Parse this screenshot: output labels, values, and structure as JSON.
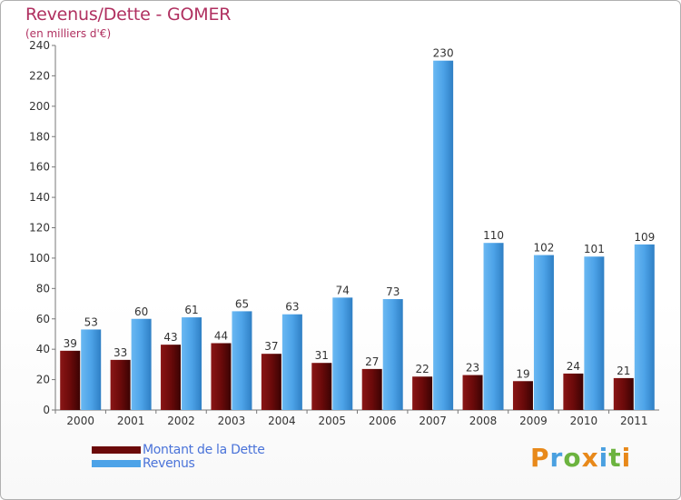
{
  "title": "Revenus/Dette - GOMER",
  "subtitle": "(en milliers d'€)",
  "colors": {
    "dette": "#6b0a0a",
    "revenus": "#4da3e8",
    "title": "#b03060"
  },
  "legend": {
    "items": [
      {
        "label": "Montant de la Dette",
        "color": "#6b0a0a"
      },
      {
        "label": "Revenus",
        "color": "#4da3e8"
      }
    ]
  },
  "logo": {
    "text": "Proxiti"
  },
  "chart_data": {
    "type": "bar",
    "title": "Revenus/Dette - GOMER",
    "ylabel": "(en milliers d'€)",
    "xlabel": "",
    "ylim": [
      0,
      240
    ],
    "yticks": [
      0,
      20,
      40,
      60,
      80,
      100,
      120,
      140,
      160,
      180,
      200,
      220,
      240
    ],
    "grid": false,
    "categories": [
      "2000",
      "2001",
      "2002",
      "2003",
      "2004",
      "2005",
      "2006",
      "2007",
      "2008",
      "2009",
      "2010",
      "2011"
    ],
    "series": [
      {
        "name": "Montant de la Dette",
        "values": [
          39,
          33,
          43,
          44,
          37,
          31,
          27,
          22,
          23,
          19,
          24,
          21
        ]
      },
      {
        "name": "Revenus",
        "values": [
          53,
          60,
          61,
          65,
          63,
          74,
          73,
          230,
          110,
          102,
          101,
          109
        ]
      }
    ]
  }
}
